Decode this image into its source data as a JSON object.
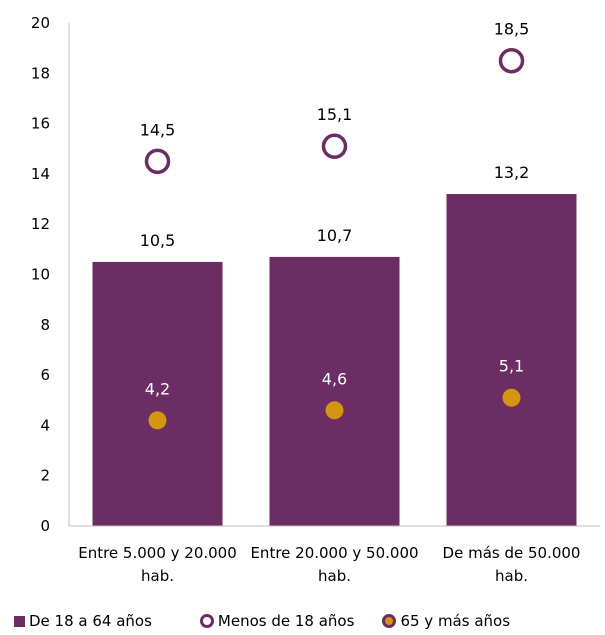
{
  "chart_data": {
    "type": "bar",
    "categories": [
      [
        "Entre 5.000 y 20.000",
        "hab."
      ],
      [
        "Entre 20.000 y 50.000",
        "hab."
      ],
      [
        "De más de 50.000",
        "hab."
      ]
    ],
    "ylim": [
      0,
      20
    ],
    "yticks": [
      "0",
      "2",
      "4",
      "6",
      "8",
      "10",
      "12",
      "14",
      "16",
      "18",
      "20"
    ],
    "grid": false,
    "legend_position": "bottom",
    "series": [
      {
        "name": "De 18 a 64 años",
        "mark": "bar",
        "values": [
          10.5,
          10.7,
          13.2
        ],
        "labels": [
          "10,5",
          "10,7",
          "13,2"
        ],
        "color": "#6b2d63"
      },
      {
        "name": "Menos de 18 años",
        "mark": "ring",
        "values": [
          14.5,
          15.1,
          18.5
        ],
        "labels": [
          "14,5",
          "15,1",
          "18,5"
        ],
        "color": "#6b2d63"
      },
      {
        "name": "65 y más años",
        "mark": "dot",
        "values": [
          4.2,
          4.6,
          5.1
        ],
        "labels": [
          "4,2",
          "4,6",
          "5,1"
        ],
        "color": "#d4960f",
        "ring_color": "#6b2d63"
      }
    ]
  }
}
